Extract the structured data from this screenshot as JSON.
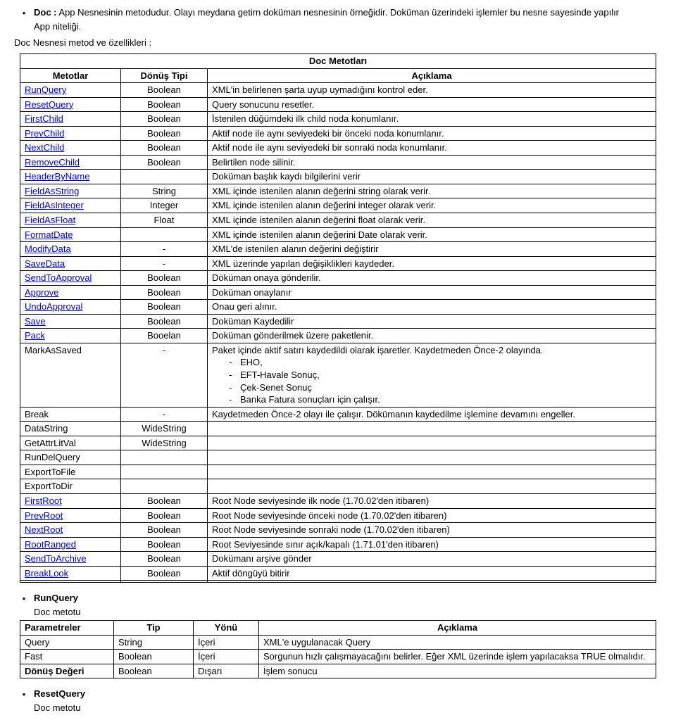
{
  "intro": {
    "doc_label": "Doc :",
    "doc_text": " App Nesnesinin metodudur. Olayı meydana getirn doküman nesnesinin örneğidir. Doküman üzerindeki işlemler bu nesne sayesinde yapılır",
    "app_feature": "App niteliği."
  },
  "methods_heading": "Doc Nesnesi metod ve özellikleri :",
  "methods_table": {
    "caption": "Doc Metotları",
    "headers": {
      "method": "Metotlar",
      "type": "Dönüş Tipi",
      "desc": "Açıklama"
    },
    "rows": [
      {
        "m": "RunQuery",
        "t": "Boolean",
        "d": "XML'in belirlenen şarta uyup uymadığını kontrol eder.",
        "link": true
      },
      {
        "m": "ResetQuery",
        "t": "Boolean",
        "d": "Query sonucunu resetler.",
        "link": true
      },
      {
        "m": "FirstChild",
        "t": "Boolean",
        "d": "İstenilen düğümdeki ilk child noda konumlanır.",
        "link": true
      },
      {
        "m": "PrevChild",
        "t": "Boolean",
        "d": "Aktif node ile aynı seviyedeki bir önceki noda konumlanır.",
        "link": true
      },
      {
        "m": "NextChild",
        "t": "Boolean",
        "d": "Aktif node ile aynı seviyedeki bir sonraki noda konumlanır.",
        "link": true
      },
      {
        "m": "RemoveChild",
        "t": "Boolean",
        "d": "Belirtilen node silinir.",
        "link": true
      },
      {
        "m": "HeaderByName",
        "t": "",
        "d": "Doküman başlık kaydı bilgilerini verir",
        "link": true
      },
      {
        "m": "FieldAsString",
        "t": "String",
        "d": "XML içinde istenilen alanın değerini string olarak verir.",
        "link": true
      },
      {
        "m": "FieldAsInteger",
        "t": "Integer",
        "d": "XML içinde istenilen alanın değerini integer olarak verir.",
        "link": true
      },
      {
        "m": "FieldAsFloat",
        "t": "Float",
        "d": "XML içinde istenilen alanın değerini float olarak verir.",
        "link": true
      },
      {
        "m": "FormatDate",
        "t": "",
        "d": "XML içinde istenilen alanın değerini Date olarak verir.",
        "link": true
      },
      {
        "m": "ModifyData",
        "t": "-",
        "d": "XML'de istenilen alanın değerini değiştirir",
        "link": true
      },
      {
        "m": "SaveData",
        "t": "-",
        "d": "XML üzerinde yapılan değişiklikleri kaydeder.",
        "link": true
      },
      {
        "m": "SendToApproval",
        "t": "Boolean",
        "d": "Döküman onaya gönderilir.",
        "link": true
      },
      {
        "m": "Approve",
        "t": "Boolean",
        "d": "Doküman onaylanır",
        "link": true
      },
      {
        "m": "UndoApproval",
        "t": "Boolean",
        "d": "Onau geri alınır.",
        "link": true
      },
      {
        "m": "Save",
        "t": "Boolean",
        "d": "Doküman Kaydedilir",
        "link": true
      },
      {
        "m": "Pack",
        "t": "Booelan",
        "d": "Doküman gönderilmek üzere paketlenir.",
        "link": true
      },
      {
        "m": "MarkAsSaved",
        "t": "-",
        "d_main": "Paket içinde aktif satırı kaydedildi olarak işaretler. Kaydetmeden Önce-2 olayında.",
        "d_items": [
          "EHO,",
          "EFT-Havale Sonuç,",
          "Çek-Senet Sonuç",
          "Banka Fatura sonuçları için çalışır."
        ],
        "link": false,
        "multi": true
      },
      {
        "m": "Break",
        "t": "-",
        "d": "Kaydetmeden Önce-2 olayı ile çalışır. Dökümanın kaydedilme işlemine devamını engeller.",
        "link": false
      },
      {
        "m": "DataString",
        "t": "WideString",
        "d": "",
        "link": false
      },
      {
        "m": "GetAttrLitVal",
        "t": "WideString",
        "d": "",
        "link": false
      },
      {
        "m": "RunDelQuery",
        "t": "",
        "d": "",
        "link": false
      },
      {
        "m": "ExportToFile",
        "t": "",
        "d": "",
        "link": false
      },
      {
        "m": "ExportToDir",
        "t": "",
        "d": "",
        "link": false
      },
      {
        "m": "FirstRoot",
        "t": "Boolean",
        "d": "Root Node seviyesinde ilk node  (1.70.02'den itibaren)",
        "link": true
      },
      {
        "m": "PrevRoot",
        "t": "Boolean",
        "d": "Root Node seviyesinde önceki node  (1.70.02'den itibaren)",
        "link": true
      },
      {
        "m": "NextRoot",
        "t": "Boolean",
        "d": "Root Node seviyesinde sonraki node  (1.70.02'den itibaren)",
        "link": true
      },
      {
        "m": "RootRanged",
        "t": "Boolean",
        "d": "Root Seviyesinde sınır açık/kapalı (1.71.01'den itibaren)",
        "link": true
      },
      {
        "m": "SendToArchive",
        "t": "Boolean",
        "d": "Dokümanı arşive gönder",
        "link": true
      },
      {
        "m": "BreakLook",
        "t": "Boolean",
        "d": "Aktif döngüyü bitirir",
        "link": true
      },
      {
        "m": "",
        "t": "",
        "d": "",
        "link": false
      }
    ]
  },
  "runquery": {
    "title": "RunQuery",
    "sub": "Doc metotu"
  },
  "params_table": {
    "headers": {
      "p": "Parametreler",
      "t": "Tip",
      "dir": "Yönü",
      "desc": "Açıklama"
    },
    "rows": [
      {
        "p": "Query",
        "t": "String",
        "dir": "İçeri",
        "d": "XML'e uygulanacak Query"
      },
      {
        "p": "Fast",
        "t": "Boolean",
        "dir": "İçeri",
        "d": "Sorgunun hızlı çalışmayacağını belirler. Eğer XML üzerinde işlem yapılacaksa TRUE olmalıdır."
      },
      {
        "p": "Dönüş Değeri",
        "t": "Boolean",
        "dir": "Dışarı",
        "d": "İşlem sonucu",
        "bold": true
      }
    ]
  },
  "resetquery": {
    "title": "ResetQuery",
    "sub": "Doc metotu"
  }
}
